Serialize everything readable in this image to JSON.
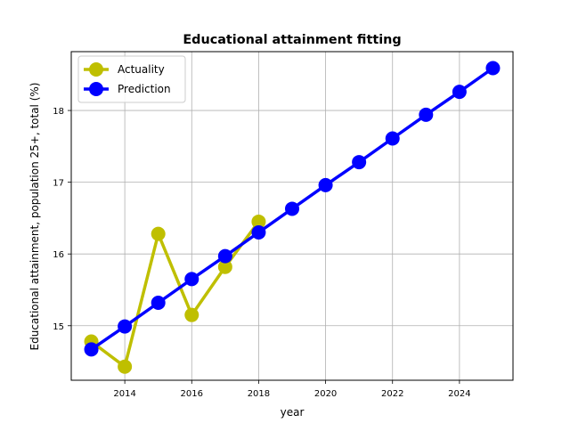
{
  "chart_data": {
    "type": "line",
    "title": "Educational attainment fitting",
    "xlabel": "year",
    "ylabel": "Educational attainment, population 25+, total (%)",
    "xlim": [
      2012.4,
      2025.6
    ],
    "ylim": [
      14.24,
      18.82
    ],
    "xticks": [
      2014,
      2016,
      2018,
      2020,
      2022,
      2024
    ],
    "yticks": [
      15,
      16,
      17,
      18
    ],
    "grid": true,
    "legend": "upper-left",
    "series": [
      {
        "name": "Actuality",
        "color": "#bfbf00",
        "x": [
          2013,
          2014,
          2015,
          2016,
          2017,
          2018
        ],
        "y": [
          14.78,
          14.43,
          16.28,
          15.15,
          15.82,
          16.45
        ]
      },
      {
        "name": "Prediction",
        "color": "#0000ff",
        "x": [
          2013,
          2014,
          2015,
          2016,
          2017,
          2018,
          2019,
          2020,
          2021,
          2022,
          2023,
          2024,
          2025
        ],
        "y": [
          14.67,
          14.99,
          15.32,
          15.65,
          15.97,
          16.3,
          16.63,
          16.96,
          17.28,
          17.61,
          17.94,
          18.26,
          18.59
        ]
      }
    ]
  }
}
